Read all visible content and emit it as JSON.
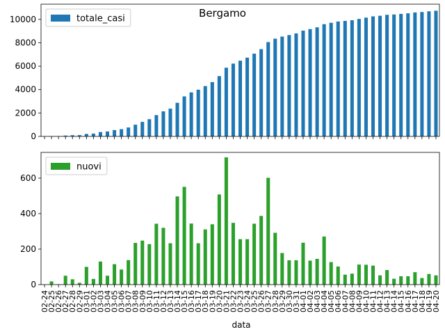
{
  "figure": {
    "suptitle": "Bergamo",
    "xlabel": "data"
  },
  "chart_data": [
    {
      "type": "bar",
      "title": "",
      "xlabel": "data",
      "ylabel": "",
      "ylim": [
        0,
        11300
      ],
      "yticks": [
        0,
        2000,
        4000,
        6000,
        8000,
        10000
      ],
      "grid": false,
      "legend": "top-left",
      "categories": [
        "02-24",
        "02-25",
        "02-26",
        "02-27",
        "02-28",
        "02-29",
        "03-01",
        "03-02",
        "03-03",
        "03-04",
        "03-05",
        "03-06",
        "03-07",
        "03-08",
        "03-09",
        "03-10",
        "03-11",
        "03-12",
        "03-13",
        "03-14",
        "03-15",
        "03-16",
        "03-17",
        "03-18",
        "03-19",
        "03-20",
        "03-21",
        "03-22",
        "03-23",
        "03-24",
        "03-25",
        "03-26",
        "03-27",
        "03-28",
        "03-29",
        "03-30",
        "03-31",
        "04-01",
        "04-02",
        "04-03",
        "04-04",
        "04-05",
        "04-06",
        "04-07",
        "04-08",
        "04-09",
        "04-10",
        "04-11",
        "04-12",
        "04-13",
        "04-14",
        "04-15",
        "04-16",
        "04-17",
        "04-18",
        "04-19",
        "04-20"
      ],
      "series": [
        {
          "name": "totale_casi",
          "color": "#1f77b4",
          "values": [
            0,
            20,
            20,
            70,
            100,
            110,
            210,
            240,
            370,
            420,
            540,
            620,
            760,
            1000,
            1240,
            1470,
            1820,
            2140,
            2370,
            2870,
            3420,
            3760,
            3990,
            4300,
            4640,
            5150,
            5870,
            6220,
            6470,
            6730,
            7070,
            7460,
            8060,
            8350,
            8530,
            8660,
            8800,
            9040,
            9170,
            9320,
            9590,
            9710,
            9820,
            9870,
            9930,
            10040,
            10150,
            10260,
            10310,
            10390,
            10420,
            10470,
            10520,
            10590,
            10630,
            10690,
            10740
          ]
        }
      ]
    },
    {
      "type": "bar",
      "title": "",
      "xlabel": "data",
      "ylabel": "",
      "ylim": [
        0,
        745
      ],
      "yticks": [
        0,
        200,
        400,
        600
      ],
      "grid": false,
      "legend": "top-left",
      "categories": [
        "02-24",
        "02-25",
        "02-26",
        "02-27",
        "02-28",
        "02-29",
        "03-01",
        "03-02",
        "03-03",
        "03-04",
        "03-05",
        "03-06",
        "03-07",
        "03-08",
        "03-09",
        "03-10",
        "03-11",
        "03-12",
        "03-13",
        "03-14",
        "03-15",
        "03-16",
        "03-17",
        "03-18",
        "03-19",
        "03-20",
        "03-21",
        "03-22",
        "03-23",
        "03-24",
        "03-25",
        "03-26",
        "03-27",
        "03-28",
        "03-29",
        "03-30",
        "03-31",
        "04-01",
        "04-02",
        "04-03",
        "04-04",
        "04-05",
        "04-06",
        "04-07",
        "04-08",
        "04-09",
        "04-10",
        "04-11",
        "04-12",
        "04-13",
        "04-14",
        "04-15",
        "04-16",
        "04-17",
        "04-18",
        "04-19",
        "04-20"
      ],
      "series": [
        {
          "name": "nuovi",
          "color": "#2ca02c",
          "values": [
            0,
            18,
            2,
            50,
            30,
            10,
            100,
            32,
            130,
            50,
            115,
            85,
            138,
            235,
            248,
            228,
            343,
            320,
            233,
            497,
            551,
            344,
            233,
            311,
            340,
            508,
            717,
            348,
            256,
            256,
            343,
            387,
            602,
            292,
            178,
            137,
            137,
            236,
            135,
            145,
            271,
            127,
            102,
            56,
            62,
            113,
            112,
            107,
            52,
            82,
            33,
            47,
            47,
            70,
            37,
            60,
            52
          ]
        }
      ]
    }
  ]
}
